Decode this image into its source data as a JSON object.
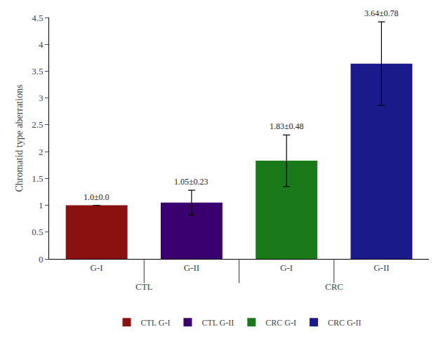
{
  "chart_data": {
    "type": "bar",
    "categories": [
      "G-I",
      "G-II",
      "G-I",
      "G-II"
    ],
    "groups": [
      "CTL",
      "CTL",
      "CRC",
      "CRC"
    ],
    "ylabel": "Chromatid type aberrations",
    "series": [
      {
        "name": "CTL G-I",
        "color": "#8B1010",
        "values": [
          1.0,
          null,
          null,
          null
        ],
        "errors": [
          0.0,
          null,
          null,
          null
        ],
        "value_labels": [
          "1.0±0.0",
          null,
          null,
          null
        ]
      },
      {
        "name": "CTL G-II",
        "color": "#3B0070",
        "values": [
          null,
          1.05,
          null,
          null
        ],
        "errors": [
          null,
          0.23,
          null,
          null
        ],
        "value_labels": [
          null,
          "1.05±0.23",
          null,
          null
        ]
      },
      {
        "name": "CRC G-I",
        "color": "#1A7A1A",
        "values": [
          null,
          null,
          1.83,
          null
        ],
        "errors": [
          null,
          null,
          0.48,
          null
        ],
        "value_labels": [
          null,
          null,
          "1.83±0.48",
          null
        ]
      },
      {
        "name": "CRC G-II",
        "color": "#1A1A8B",
        "values": [
          null,
          null,
          null,
          3.64
        ],
        "errors": [
          null,
          null,
          null,
          0.78
        ],
        "value_labels": [
          null,
          null,
          null,
          "3.64±0.78"
        ]
      }
    ],
    "ylim": [
      0,
      4.5
    ],
    "yticks": [
      0,
      0.5,
      1,
      1.5,
      2,
      2.5,
      3,
      3.5,
      4,
      4.5
    ],
    "grid": false,
    "legend": "bottom",
    "data_labels": true
  }
}
